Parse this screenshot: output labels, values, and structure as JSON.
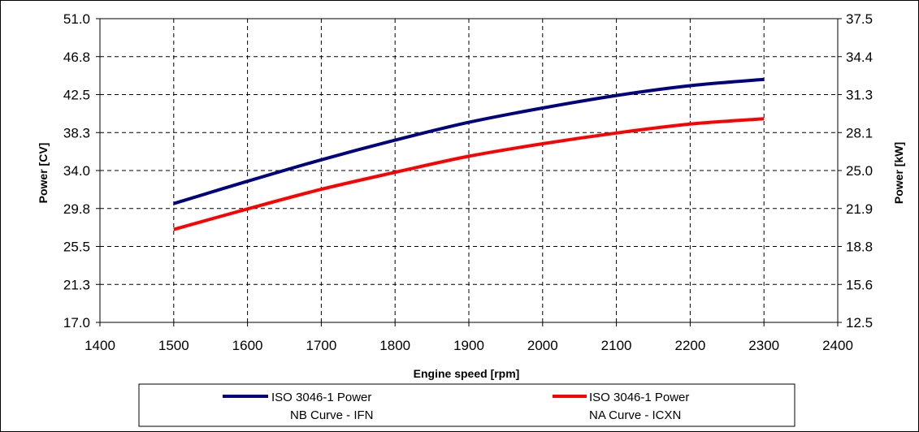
{
  "chart_data": {
    "type": "line",
    "title": "",
    "xlabel": "Engine speed [rpm]",
    "ylabel_left": "Power [CV]",
    "ylabel_right": "Power [kW]",
    "xlim": [
      1400,
      2400
    ],
    "ylim_left": [
      17.0,
      51.0
    ],
    "ylim_right": [
      12.5,
      37.5
    ],
    "x_ticks": [
      "1400",
      "1500",
      "1600",
      "1700",
      "1800",
      "1900",
      "2000",
      "2100",
      "2200",
      "2300",
      "2400"
    ],
    "y_ticks_left": [
      "17.0",
      "21.3",
      "25.5",
      "29.8",
      "34.0",
      "38.3",
      "42.5",
      "46.8",
      "51.0"
    ],
    "y_ticks_right": [
      "12.5",
      "15.6",
      "18.8",
      "21.9",
      "25.0",
      "28.1",
      "31.3",
      "34.4",
      "37.5"
    ],
    "grid": true,
    "legend_position": "bottom",
    "series": [
      {
        "name_line1": "ISO 3046-1 Power",
        "name_line2": "NB Curve - IFN",
        "color": "#000080",
        "x": [
          1500,
          1600,
          1700,
          1800,
          1900,
          2000,
          2100,
          2200,
          2300
        ],
        "y": [
          30.3,
          32.8,
          35.2,
          37.4,
          39.4,
          41.0,
          42.4,
          43.5,
          44.2
        ]
      },
      {
        "name_line1": "ISO 3046-1 Power",
        "name_line2": "NA Curve - ICXN",
        "color": "#ff0000",
        "x": [
          1500,
          1600,
          1700,
          1800,
          1900,
          2000,
          2100,
          2200,
          2300
        ],
        "y": [
          27.4,
          29.7,
          31.9,
          33.8,
          35.6,
          37.0,
          38.2,
          39.2,
          39.8
        ]
      }
    ]
  }
}
